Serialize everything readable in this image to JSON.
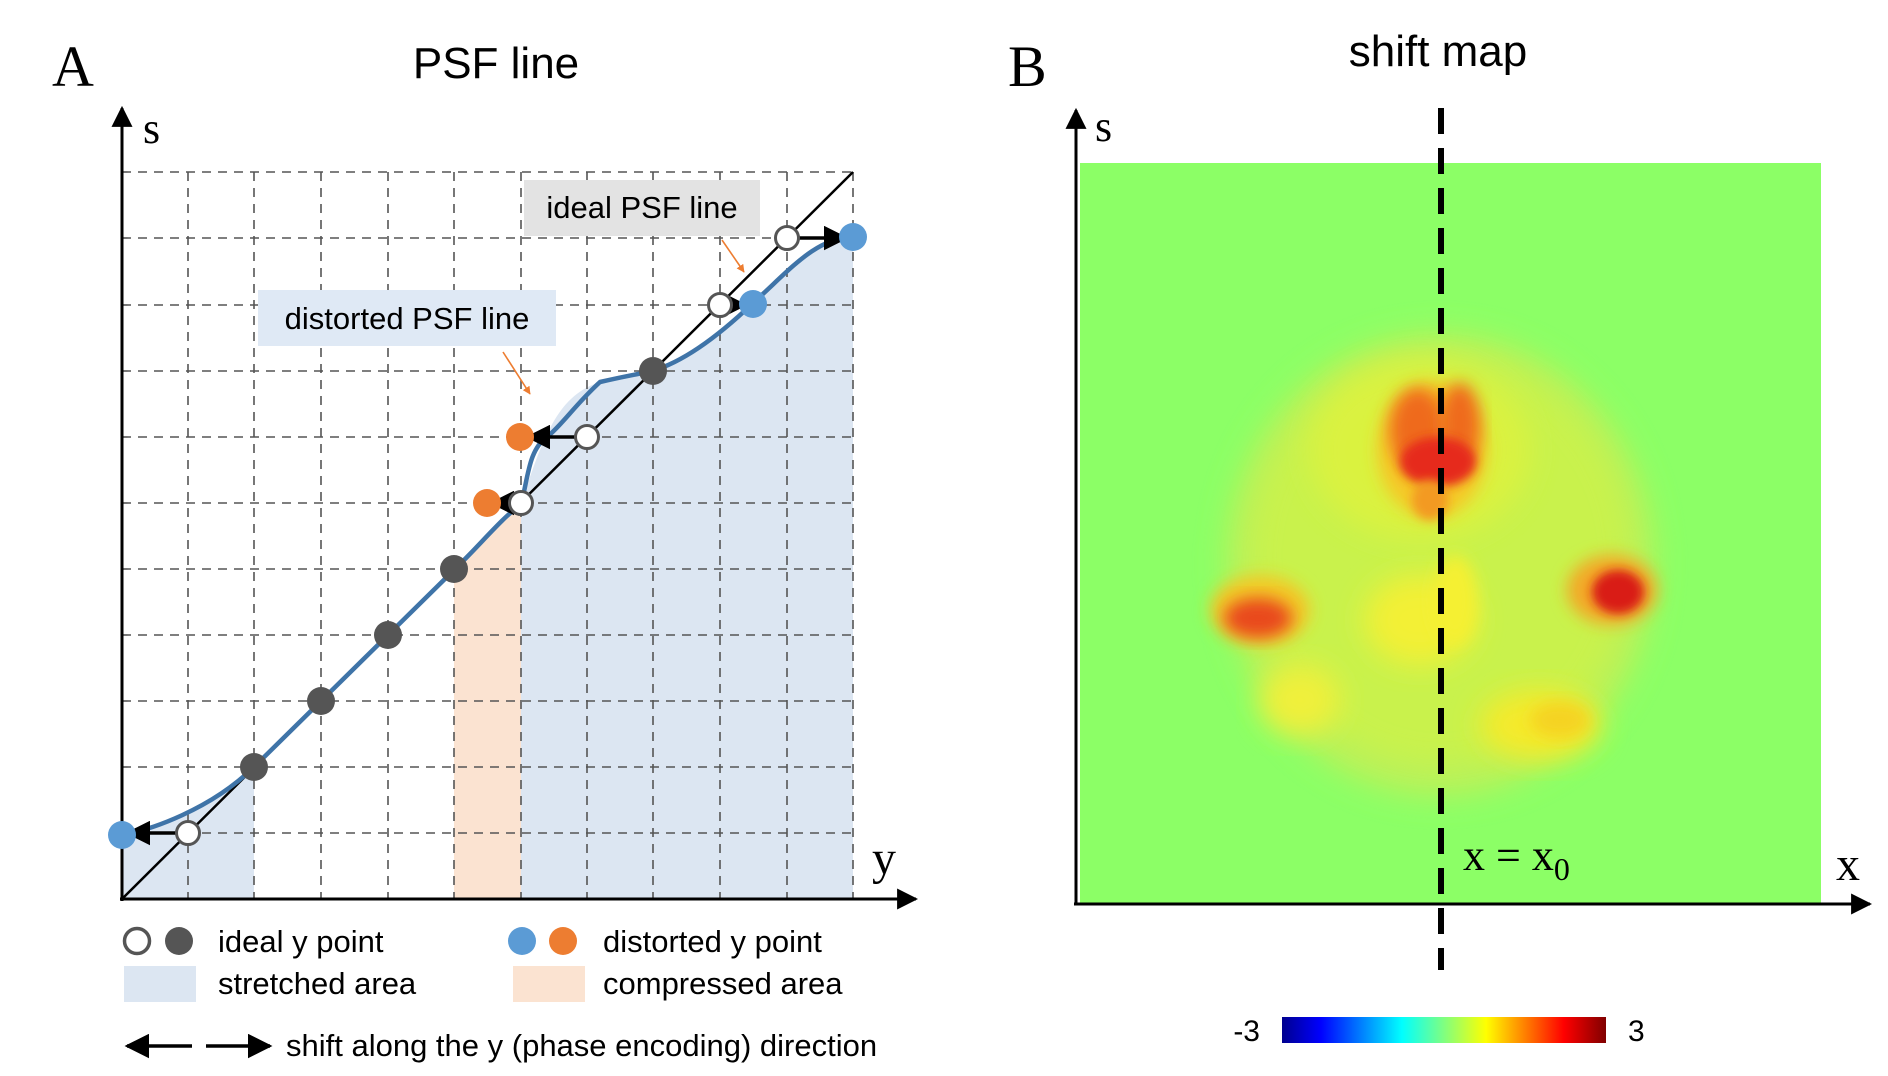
{
  "panel_a": {
    "letter": "A",
    "title": "PSF line",
    "axis_y_label": "s",
    "axis_x_label": "y",
    "ideal_callout": "ideal PSF line",
    "distorted_callout": "distorted PSF line",
    "legend": {
      "ideal_point": "ideal y point",
      "distorted_point": "distorted y point",
      "stretched": "stretched area",
      "compressed": "compressed area",
      "shift": "shift along the y (phase encoding) direction"
    },
    "colors": {
      "ideal_fill": "#555555",
      "distorted_blue": "#5b9bd5",
      "distorted_orange": "#ed7d31",
      "curve": "#3f74a8",
      "stretched": "#dce6f2",
      "compressed": "#fbe3d1",
      "callout_gray": "#e3e3e3",
      "callout_blue": "#dfe9f5",
      "arrow_orange": "#ed7d31"
    }
  },
  "panel_b": {
    "letter": "B",
    "title": "shift map",
    "axis_y_label": "s",
    "axis_x_label": "x",
    "line_label_main": "x = x",
    "line_label_sub": "0",
    "colorbar_min": "-3",
    "colorbar_max": "3",
    "colors": {
      "background": "#8cff66",
      "brain_edge": "#b9f25a",
      "brain_mid": "#dff23c",
      "yellow": "#f5f032",
      "orange": "#f07a1e",
      "red": "#e0241a"
    }
  }
}
